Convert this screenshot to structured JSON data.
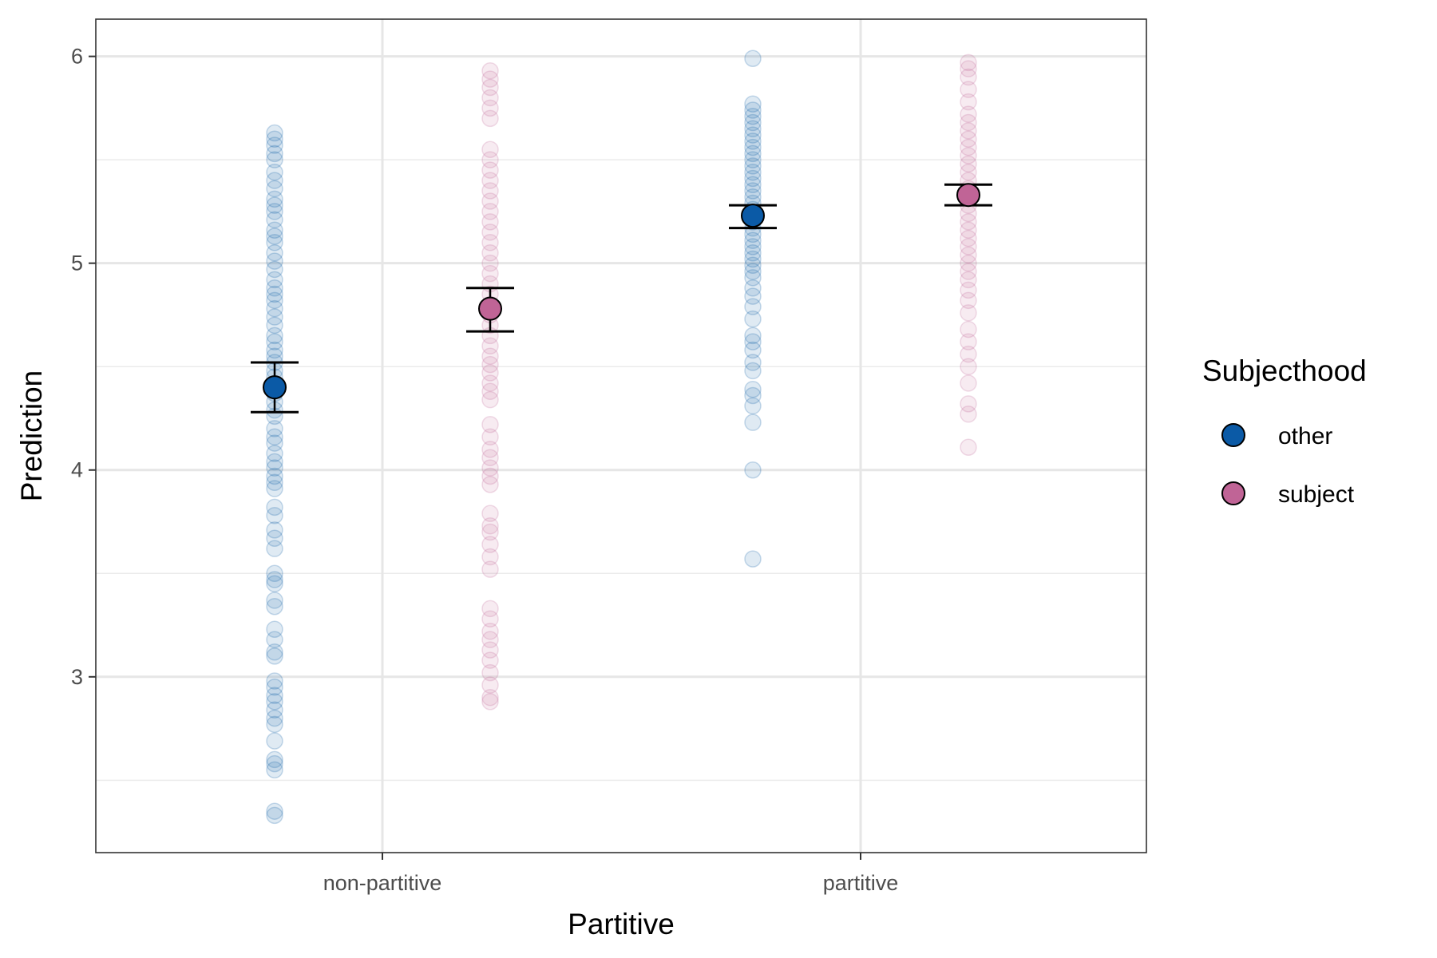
{
  "chart_data": {
    "type": "scatter",
    "subtype": "jittered strip plot with mean and error bars",
    "xlabel": "Partitive",
    "ylabel": "Prediction",
    "categories": [
      "non-partitive",
      "partitive"
    ],
    "ylim": [
      2.15,
      6.18
    ],
    "yticks": [
      3,
      4,
      5,
      6
    ],
    "grid": true,
    "legend": {
      "title": "Subjecthood",
      "position": "right"
    },
    "series": [
      {
        "name": "other",
        "color": "#0b5aa6",
        "groups": [
          {
            "category": "non-partitive",
            "mean": 4.4,
            "error": [
              4.28,
              4.52
            ],
            "points": [
              2.33,
              2.35,
              2.55,
              2.58,
              2.6,
              2.69,
              2.77,
              2.8,
              2.84,
              2.88,
              2.91,
              2.95,
              2.98,
              3.1,
              3.12,
              3.18,
              3.23,
              3.34,
              3.37,
              3.45,
              3.47,
              3.5,
              3.62,
              3.67,
              3.71,
              3.78,
              3.82,
              3.91,
              3.94,
              3.97,
              4.01,
              4.04,
              4.08,
              4.13,
              4.16,
              4.2,
              4.26,
              4.29,
              4.33,
              4.37,
              4.41,
              4.45,
              4.48,
              4.52,
              4.55,
              4.58,
              4.62,
              4.65,
              4.7,
              4.74,
              4.78,
              4.82,
              4.85,
              4.88,
              4.92,
              4.97,
              5.01,
              5.05,
              5.1,
              5.13,
              5.16,
              5.21,
              5.25,
              5.28,
              5.31,
              5.36,
              5.4,
              5.44,
              5.5,
              5.53,
              5.57,
              5.6,
              5.63
            ]
          },
          {
            "category": "partitive",
            "mean": 5.23,
            "error": [
              5.17,
              5.28
            ],
            "points": [
              3.57,
              4.0,
              4.23,
              4.31,
              4.36,
              4.39,
              4.48,
              4.52,
              4.58,
              4.62,
              4.65,
              4.73,
              4.79,
              4.84,
              4.88,
              4.93,
              4.96,
              4.99,
              5.02,
              5.05,
              5.08,
              5.11,
              5.14,
              5.17,
              5.2,
              5.23,
              5.26,
              5.29,
              5.32,
              5.35,
              5.38,
              5.41,
              5.44,
              5.47,
              5.5,
              5.53,
              5.56,
              5.59,
              5.62,
              5.65,
              5.68,
              5.71,
              5.74,
              5.77,
              5.99
            ]
          }
        ]
      },
      {
        "name": "subject",
        "color": "#c06496",
        "groups": [
          {
            "category": "non-partitive",
            "mean": 4.78,
            "error": [
              4.67,
              4.88
            ],
            "points": [
              2.88,
              2.9,
              2.96,
              3.02,
              3.08,
              3.13,
              3.18,
              3.22,
              3.28,
              3.33,
              3.52,
              3.58,
              3.64,
              3.7,
              3.73,
              3.79,
              3.93,
              3.97,
              4.01,
              4.06,
              4.1,
              4.16,
              4.22,
              4.34,
              4.38,
              4.42,
              4.47,
              4.51,
              4.55,
              4.6,
              4.65,
              4.7,
              4.75,
              4.8,
              4.85,
              4.9,
              4.95,
              5.0,
              5.05,
              5.1,
              5.15,
              5.2,
              5.25,
              5.3,
              5.35,
              5.4,
              5.45,
              5.5,
              5.55,
              5.7,
              5.75,
              5.8,
              5.85,
              5.89,
              5.93
            ]
          },
          {
            "category": "partitive",
            "mean": 5.33,
            "error": [
              5.28,
              5.38
            ],
            "points": [
              4.11,
              4.27,
              4.32,
              4.42,
              4.5,
              4.56,
              4.62,
              4.68,
              4.76,
              4.82,
              4.87,
              4.92,
              4.96,
              5.0,
              5.04,
              5.08,
              5.12,
              5.16,
              5.2,
              5.24,
              5.28,
              5.32,
              5.36,
              5.4,
              5.44,
              5.48,
              5.52,
              5.56,
              5.6,
              5.64,
              5.68,
              5.72,
              5.78,
              5.84,
              5.9,
              5.94,
              5.97
            ]
          }
        ]
      }
    ]
  }
}
